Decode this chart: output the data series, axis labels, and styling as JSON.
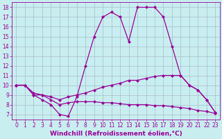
{
  "bg_color": "#c8eef0",
  "line_color": "#990099",
  "grid_color": "#aabbcc",
  "xlabel": "Windchill (Refroidissement éolien,°C)",
  "xlim": [
    -0.5,
    23.5
  ],
  "ylim": [
    6.5,
    18.5
  ],
  "xticks": [
    0,
    1,
    2,
    3,
    4,
    5,
    6,
    7,
    8,
    9,
    10,
    11,
    12,
    13,
    14,
    15,
    16,
    17,
    18,
    19,
    20,
    21,
    22,
    23
  ],
  "yticks": [
    7,
    8,
    9,
    10,
    11,
    12,
    13,
    14,
    15,
    16,
    17,
    18
  ],
  "line1_x": [
    0,
    1,
    2,
    3,
    4,
    5,
    6,
    7,
    8,
    9,
    10,
    11,
    12,
    13,
    14,
    15,
    16,
    17,
    18,
    19,
    20,
    21,
    22,
    23
  ],
  "line1_y": [
    10,
    10,
    9,
    8.5,
    8,
    7,
    6.8,
    8.8,
    12,
    15,
    17,
    17.5,
    17,
    14.5,
    18,
    18,
    18,
    17,
    14,
    11,
    10,
    9.5,
    8.5,
    7.2
  ],
  "line2_x": [
    0,
    1,
    2,
    3,
    4,
    5,
    6,
    7,
    8,
    9,
    10,
    11,
    12,
    13,
    14,
    15,
    16,
    17,
    18,
    19,
    20,
    21,
    22,
    23
  ],
  "line2_y": [
    10,
    10,
    9.2,
    9,
    8.8,
    8.5,
    8.8,
    9,
    9.2,
    9.5,
    9.8,
    10,
    10.2,
    10.5,
    10.5,
    10.7,
    10.9,
    11,
    11,
    11,
    10,
    9.5,
    8.5,
    7.2
  ],
  "line3_x": [
    0,
    1,
    2,
    3,
    4,
    5,
    6,
    7,
    8,
    9,
    10,
    11,
    12,
    13,
    14,
    15,
    16,
    17,
    18,
    19,
    20,
    21,
    22,
    23
  ],
  "line3_y": [
    10,
    10,
    9,
    9,
    8.5,
    8.0,
    8.2,
    8.3,
    8.3,
    8.3,
    8.2,
    8.2,
    8.1,
    8.0,
    8.0,
    8.0,
    7.9,
    7.9,
    7.8,
    7.7,
    7.6,
    7.4,
    7.3,
    7.1
  ],
  "markersize": 2.5,
  "linewidth": 0.9,
  "tick_fontsize": 5.5,
  "label_fontsize": 6.5
}
